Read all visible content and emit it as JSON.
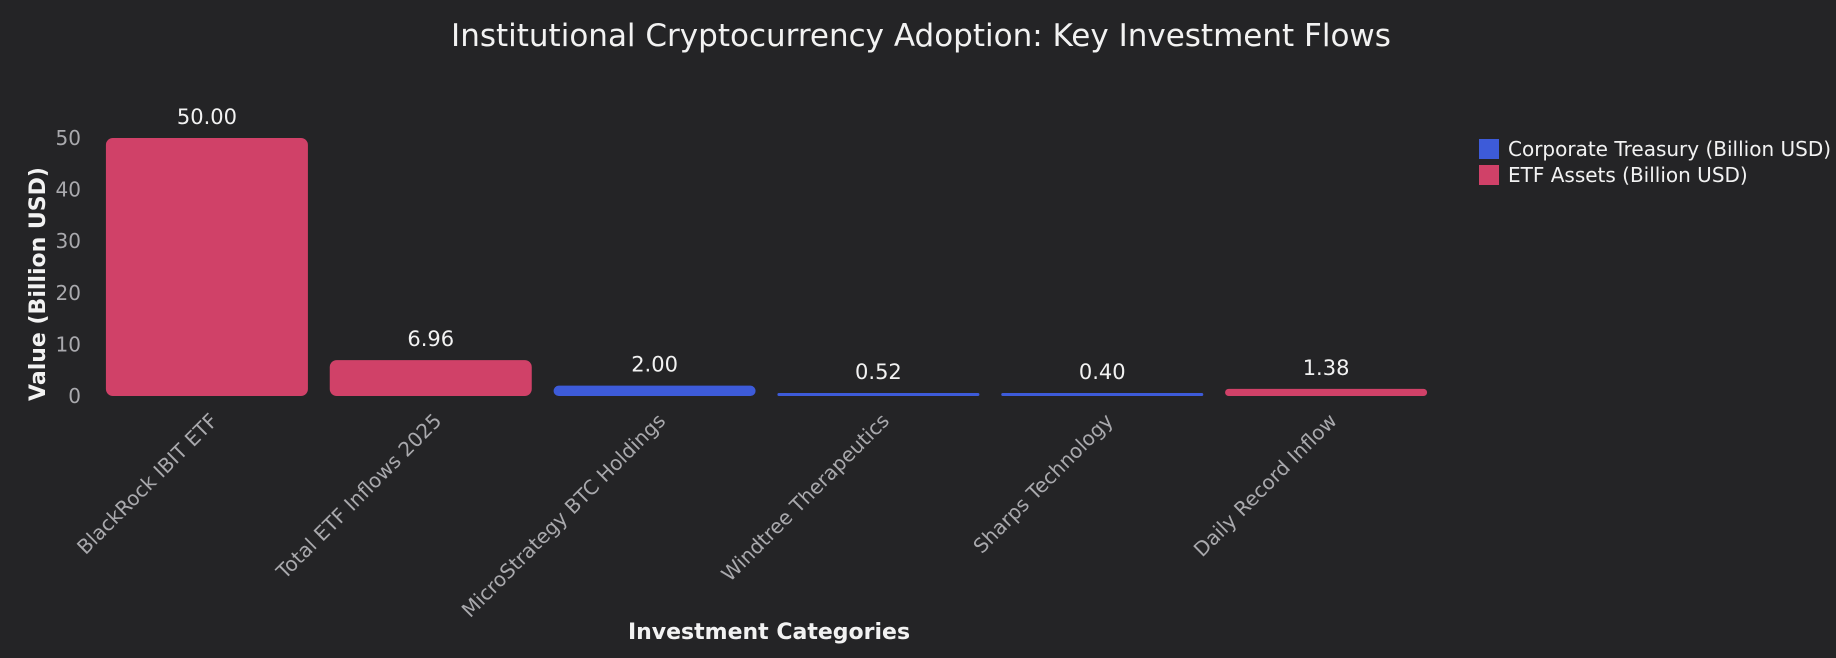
{
  "chart_data": {
    "type": "bar",
    "title": "Institutional Cryptocurrency Adoption: Key Investment Flows",
    "xlabel": "Investment Categories",
    "ylabel": "Value (Billion USD)",
    "ylim": [
      0,
      50
    ],
    "yticks": [
      0,
      10,
      20,
      30,
      40,
      50
    ],
    "categories": [
      "BlackRock IBIT ETF",
      "Total ETF Inflows 2025",
      "MicroStrategy BTC Holdings",
      "Windtree Therapeutics",
      "Sharps Technology",
      "Daily Record Inflow"
    ],
    "values": [
      50.0,
      6.96,
      2.0,
      0.52,
      0.4,
      1.38
    ],
    "value_labels": [
      "50.00",
      "6.96",
      "2.00",
      "0.52",
      "0.40",
      "1.38"
    ],
    "bar_series": [
      "ETF Assets (Billion USD)",
      "ETF Assets (Billion USD)",
      "Corporate Treasury (Billion USD)",
      "Corporate Treasury (Billion USD)",
      "Corporate Treasury (Billion USD)",
      "ETF Assets (Billion USD)"
    ],
    "series": [
      {
        "name": "Corporate Treasury (Billion USD)",
        "color": "#3d5bd9"
      },
      {
        "name": "ETF Assets (Billion USD)",
        "color": "#d04168"
      }
    ],
    "legend_position": "top-right",
    "grid": false
  }
}
